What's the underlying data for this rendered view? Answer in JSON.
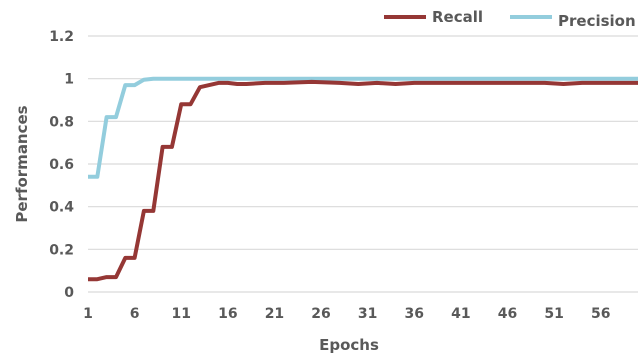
{
  "chart_data": {
    "type": "line",
    "title": "",
    "xlabel": "Epochs",
    "ylabel": "Performances",
    "xlim": [
      1,
      60
    ],
    "ylim": [
      0,
      1.2
    ],
    "x_ticks": [
      "1",
      "6",
      "11",
      "16",
      "21",
      "26",
      "31",
      "36",
      "41",
      "46",
      "51",
      "56"
    ],
    "y_ticks": [
      "0",
      "0.2",
      "0.4",
      "0.6",
      "0.8",
      "1",
      "1.2"
    ],
    "grid": true,
    "legend_position": "top-right",
    "colors": {
      "Recall": "#953735",
      "Precision": "#93CDDD"
    },
    "series": [
      {
        "name": "Recall",
        "x": [
          1,
          2,
          3,
          4,
          5,
          6,
          7,
          8,
          9,
          10,
          11,
          12,
          13,
          14,
          15,
          16,
          17,
          18,
          20,
          22,
          25,
          28,
          30,
          32,
          34,
          36,
          40,
          45,
          50,
          52,
          54,
          60
        ],
        "values": [
          0.06,
          0.06,
          0.07,
          0.07,
          0.16,
          0.16,
          0.38,
          0.38,
          0.68,
          0.68,
          0.88,
          0.88,
          0.96,
          0.97,
          0.98,
          0.98,
          0.975,
          0.975,
          0.98,
          0.98,
          0.985,
          0.98,
          0.975,
          0.98,
          0.975,
          0.98,
          0.98,
          0.98,
          0.98,
          0.975,
          0.98,
          0.98
        ]
      },
      {
        "name": "Precision",
        "x": [
          1,
          2,
          3,
          4,
          5,
          6,
          7,
          8,
          10,
          15,
          20,
          30,
          40,
          50,
          60
        ],
        "values": [
          0.54,
          0.54,
          0.82,
          0.82,
          0.97,
          0.97,
          0.995,
          1.0,
          1.0,
          1.0,
          1.0,
          1.0,
          1.0,
          1.0,
          1.0
        ]
      }
    ]
  }
}
